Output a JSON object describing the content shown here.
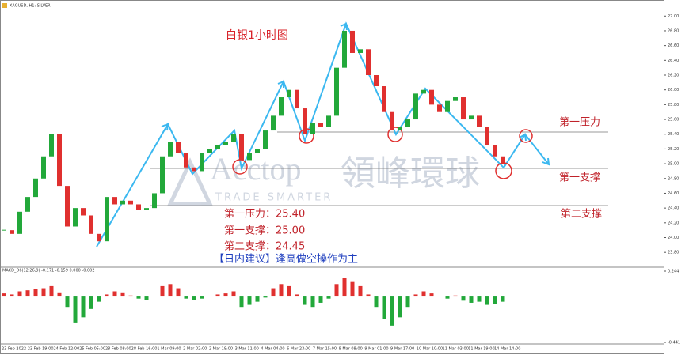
{
  "header": "XAGUSD, H1: SILVER",
  "watermark": {
    "brand": "Acctop",
    "cn": "領峰環球",
    "tagline": "TRADE SMARTER"
  },
  "annotations": {
    "resistance1": "第一压力",
    "support1": "第一支撑",
    "support2": "第二支撑",
    "levels": [
      "第一压力：25.40",
      "第一支撑：25.00",
      "第二支撑：24.45"
    ],
    "advice": "【日内建议】逢高做空操作为主"
  },
  "chart_data": [
    {
      "type": "candlestick",
      "title": "白银1小时图",
      "up_color": "#22a83a",
      "down_color": "#e0302f",
      "close": [
        24.1,
        24.05,
        24.35,
        24.55,
        24.8,
        25.1,
        25.4,
        24.7,
        24.15,
        24.4,
        24.3,
        24.05,
        23.95,
        24.55,
        24.45,
        24.5,
        24.45,
        24.38,
        24.4,
        24.6,
        25.1,
        25.3,
        25.15,
        24.95,
        24.9,
        25.15,
        25.2,
        25.25,
        25.3,
        25.4,
        25.05,
        25.15,
        25.2,
        25.45,
        25.65,
        25.9,
        26.0,
        25.75,
        25.4,
        25.55,
        25.5,
        25.65,
        26.3,
        26.8,
        26.5,
        26.55,
        26.2,
        26.05,
        25.7,
        25.45,
        25.5,
        25.6,
        25.95,
        26.0,
        25.8,
        25.7,
        25.85,
        25.9,
        25.6,
        25.65,
        25.5,
        25.25,
        25.1,
        25.0
      ],
      "ylim": [
        23.62,
        27.11
      ],
      "yticks": [
        {
          "value": 27,
          "label": "27.00"
        },
        {
          "value": 26.8,
          "label": "26.80"
        },
        {
          "value": 26.6,
          "label": "26.60"
        },
        {
          "value": 26.4,
          "label": "26.40"
        },
        {
          "value": 26.2,
          "label": "26.20"
        },
        {
          "value": 26,
          "label": "26.00"
        },
        {
          "value": 25.8,
          "label": "25.80"
        },
        {
          "value": 25.6,
          "label": "25.60"
        },
        {
          "value": 25.4,
          "label": "25.40"
        },
        {
          "value": 25.2,
          "label": "25.20"
        },
        {
          "value": 25,
          "label": "25.00"
        },
        {
          "value": 24.8,
          "label": "24.80"
        },
        {
          "value": 24.6,
          "label": "24.60"
        },
        {
          "value": 24.4,
          "label": "24.40"
        },
        {
          "value": 24.2,
          "label": "24.20"
        },
        {
          "value": 24,
          "label": "24.00"
        },
        {
          "value": 23.8,
          "label": "23.80"
        }
      ],
      "x_labels": [
        "23 Feb 2022",
        "23 Feb 19:00",
        "24 Feb 12:00",
        "25 Feb 05:00",
        "28 Feb 08:00",
        "28 Feb 16:00",
        "1 Mar 09:00",
        "2 Mar 02:00",
        "2 Mar 18:00",
        "3 Mar 11:00",
        "4 Mar 04:00",
        "6 Mar 23:00",
        "7 Mar 15:00",
        "8 Mar 08:00",
        "9 Mar 01:00",
        "9 Mar 17:00",
        "10 Mar 10:00",
        "11 Mar 03:00",
        "11 Mar 19:00",
        "14 Mar 14:00"
      ]
    },
    {
      "type": "bar",
      "label": "MACD_D6(12,26,9) -0.171 -0.159 0.000 -0.002",
      "pos_color": "#e0302f",
      "neg_color": "#22a83a",
      "values": [
        0.03,
        0.02,
        0.05,
        0.06,
        0.07,
        0.08,
        0.1,
        0.04,
        -0.1,
        -0.25,
        -0.2,
        -0.12,
        -0.05,
        0.02,
        0.05,
        0.04,
        0.01,
        -0.02,
        -0.03,
        0.0,
        0.1,
        0.12,
        0.08,
        -0.02,
        -0.03,
        -0.02,
        0.0,
        0.02,
        0.03,
        0.05,
        -0.1,
        -0.08,
        -0.05,
        -0.01,
        0.08,
        0.12,
        0.1,
        0.02,
        -0.08,
        -0.1,
        -0.06,
        -0.02,
        0.12,
        0.18,
        0.14,
        0.1,
        0.02,
        -0.1,
        -0.22,
        -0.28,
        -0.2,
        -0.1,
        0.02,
        0.05,
        0.03,
        0.0,
        -0.02,
        0.01,
        -0.04,
        -0.06,
        -0.05,
        -0.08,
        -0.07,
        -0.05
      ],
      "ylim": [
        -0.441,
        0.244
      ],
      "yticks": [
        0.244,
        -0.441
      ]
    }
  ]
}
